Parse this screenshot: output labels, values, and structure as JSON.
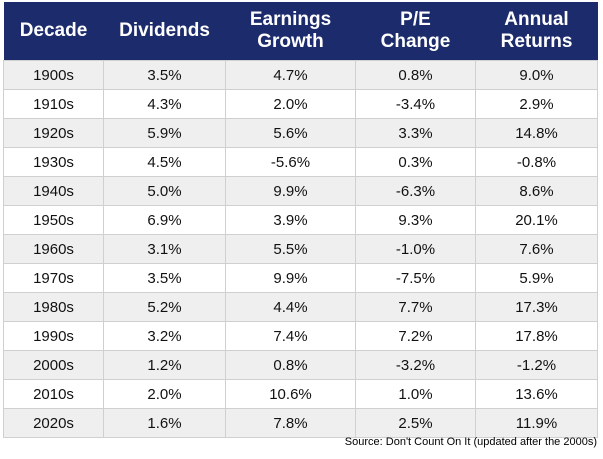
{
  "table": {
    "headers": [
      "Decade",
      "Dividends",
      "Earnings Growth",
      "P/E Change",
      "Annual Returns"
    ],
    "rows": [
      [
        "1900s",
        "3.5%",
        "4.7%",
        "0.8%",
        "9.0%"
      ],
      [
        "1910s",
        "4.3%",
        "2.0%",
        "-3.4%",
        "2.9%"
      ],
      [
        "1920s",
        "5.9%",
        "5.6%",
        "3.3%",
        "14.8%"
      ],
      [
        "1930s",
        "4.5%",
        "-5.6%",
        "0.3%",
        "-0.8%"
      ],
      [
        "1940s",
        "5.0%",
        "9.9%",
        "-6.3%",
        "8.6%"
      ],
      [
        "1950s",
        "6.9%",
        "3.9%",
        "9.3%",
        "20.1%"
      ],
      [
        "1960s",
        "3.1%",
        "5.5%",
        "-1.0%",
        "7.6%"
      ],
      [
        "1970s",
        "3.5%",
        "9.9%",
        "-7.5%",
        "5.9%"
      ],
      [
        "1980s",
        "5.2%",
        "4.4%",
        "7.7%",
        "17.3%"
      ],
      [
        "1990s",
        "3.2%",
        "7.4%",
        "7.2%",
        "17.8%"
      ],
      [
        "2000s",
        "1.2%",
        "0.8%",
        "-3.2%",
        "-1.2%"
      ],
      [
        "2010s",
        "2.0%",
        "10.6%",
        "1.0%",
        "13.6%"
      ],
      [
        "2020s",
        "1.6%",
        "7.8%",
        "2.5%",
        "11.9%"
      ]
    ]
  },
  "source": "Source: Don't Count On It (updated after the 2000s)"
}
